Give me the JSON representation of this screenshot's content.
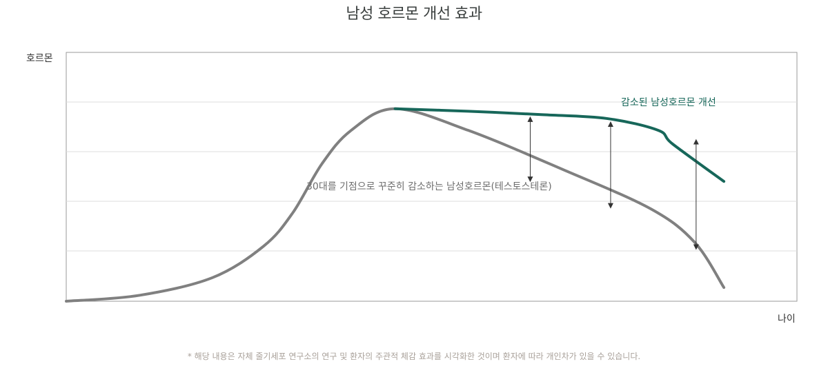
{
  "chart_data": {
    "type": "line",
    "title": "남성 호르몬 개선 효과",
    "ylabel": "호르몬",
    "xlabel": "나이",
    "grid": true,
    "series": [
      {
        "name": "30대를 기점으로 꾸준히 감소하는 남성호르몬(테스토스테론)",
        "color": "#808080",
        "points": [
          [
            0,
            0
          ],
          [
            0.1,
            0.03
          ],
          [
            0.2,
            0.12
          ],
          [
            0.27,
            0.28
          ],
          [
            0.31,
            0.45
          ],
          [
            0.35,
            0.7
          ],
          [
            0.39,
            0.87
          ],
          [
            0.45,
            0.98
          ],
          [
            0.55,
            0.87
          ],
          [
            0.68,
            0.67
          ],
          [
            0.8,
            0.47
          ],
          [
            0.86,
            0.3
          ],
          [
            0.9,
            0.07
          ]
        ]
      },
      {
        "name": "감소된 남성호르몬 개선",
        "color": "#17675a",
        "points": [
          [
            0.45,
            0.98
          ],
          [
            0.55,
            0.967
          ],
          [
            0.65,
            0.95
          ],
          [
            0.74,
            0.93
          ],
          [
            0.81,
            0.87
          ],
          [
            0.83,
            0.8
          ],
          [
            0.9,
            0.61
          ]
        ]
      }
    ],
    "gap_markers": [
      {
        "x": 0.635,
        "low": 0.61,
        "high": 0.955
      },
      {
        "x": 0.745,
        "low": 0.475,
        "high": 0.93
      },
      {
        "x": 0.862,
        "low": 0.265,
        "high": 0.84
      }
    ],
    "annotations": [
      {
        "text": "감소된 남성호르몬 개선",
        "series": 1
      },
      {
        "text": "30대를 기점으로 꾸준히 감소하는 남성호르몬(테스토스테론)",
        "series": 0
      }
    ]
  },
  "footnote": "* 해당 내용은 자체 줄기세포 연구소의 연구 및 환자의 주관적 체감 효과를 시각화한 것이며 환자에 따라 개인차가 있을 수 있습니다."
}
